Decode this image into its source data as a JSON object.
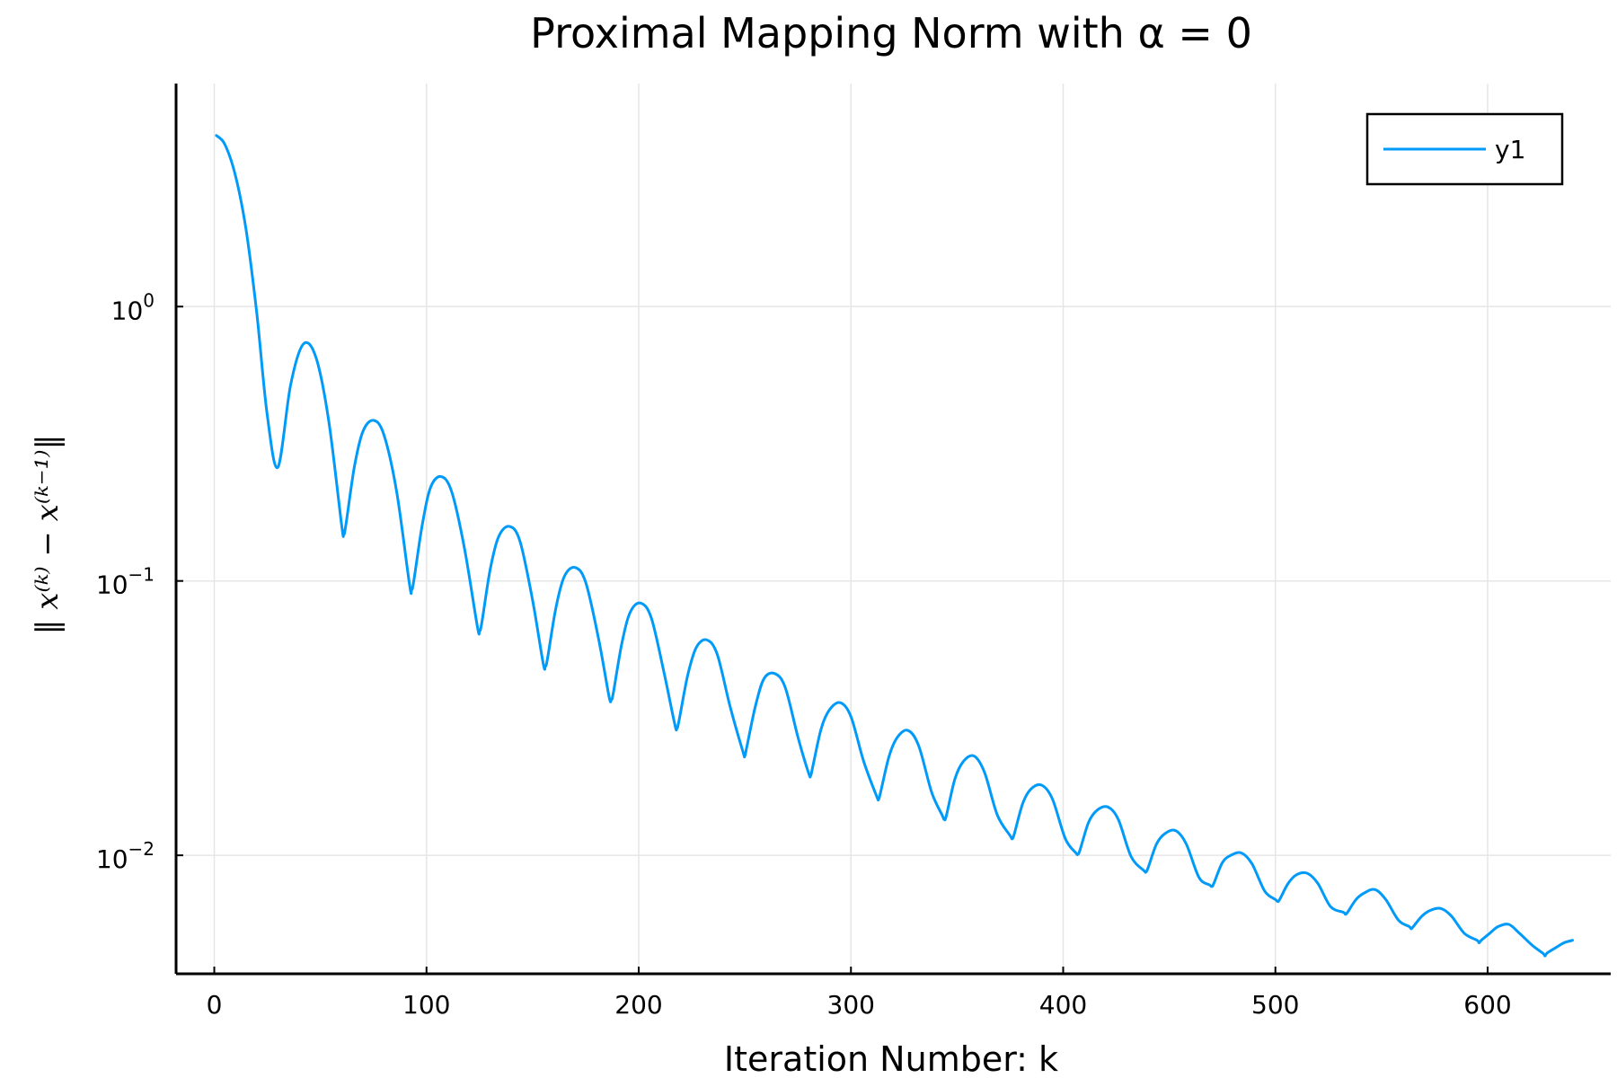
{
  "chart_data": {
    "type": "line",
    "title": "Proximal Mapping Norm with α = 0",
    "xlabel": "Iteration Number: k",
    "ylabel": "‖ x⁽ᵏ⁾ − x⁽ᵏ⁻¹⁾‖",
    "xlim": [
      -18,
      658
    ],
    "ylim": [
      0.0037,
      6.5
    ],
    "yscale": "log",
    "grid": true,
    "legend_position": "top-right",
    "x_ticks": [
      0,
      100,
      200,
      300,
      400,
      500,
      600
    ],
    "x_tick_labels": [
      "0",
      "100",
      "200",
      "300",
      "400",
      "500",
      "600"
    ],
    "y_ticks": [
      {
        "value": 1.0,
        "base": "10",
        "exp": "0"
      },
      {
        "value": 0.1,
        "base": "10",
        "exp": "−1"
      },
      {
        "value": 0.01,
        "base": "10",
        "exp": "−2"
      }
    ],
    "series": [
      {
        "name": "y1",
        "color": "#009af9",
        "x": [
          1,
          5,
          10,
          15,
          20,
          25,
          30,
          36,
          42,
          48,
          54,
          60,
          61,
          62,
          66,
          70,
          75,
          80,
          86,
          92,
          93,
          94,
          98,
          102,
          107,
          112,
          118,
          124,
          125,
          126,
          130,
          134,
          139,
          144,
          150,
          155,
          156,
          157,
          161,
          165,
          170,
          175,
          181,
          186,
          187,
          188,
          192,
          196,
          201,
          206,
          212,
          217,
          218,
          219,
          223,
          227,
          232,
          237,
          243,
          249,
          250,
          251,
          255,
          259,
          264,
          269,
          275,
          280,
          281,
          282,
          286,
          290,
          295,
          300,
          306,
          312,
          313,
          314,
          318,
          322,
          327,
          332,
          338,
          343,
          344,
          345,
          349,
          353,
          358,
          363,
          369,
          375,
          376,
          377,
          381,
          385,
          390,
          395,
          401,
          406,
          407,
          408,
          412,
          416,
          421,
          426,
          432,
          438,
          439,
          440,
          444,
          448,
          453,
          458,
          464,
          469,
          470,
          471,
          475,
          479,
          484,
          489,
          495,
          500,
          501,
          502,
          506,
          510,
          515,
          520,
          526,
          532,
          533,
          534,
          538,
          542,
          547,
          552,
          558,
          563,
          564,
          565,
          569,
          573,
          578,
          583,
          589,
          595,
          596,
          597,
          601,
          605,
          610,
          615,
          621,
          626,
          627,
          628,
          632,
          636,
          640
        ],
        "y": [
          4.2,
          3.9,
          3.0,
          1.9,
          0.95,
          0.4,
          0.26,
          0.52,
          0.73,
          0.65,
          0.38,
          0.16,
          0.148,
          0.16,
          0.26,
          0.35,
          0.385,
          0.34,
          0.21,
          0.097,
          0.093,
          0.1,
          0.16,
          0.22,
          0.24,
          0.21,
          0.13,
          0.068,
          0.066,
          0.07,
          0.11,
          0.145,
          0.158,
          0.14,
          0.085,
          0.05,
          0.049,
          0.052,
          0.08,
          0.104,
          0.112,
          0.099,
          0.062,
          0.038,
          0.037,
          0.039,
          0.059,
          0.077,
          0.083,
          0.073,
          0.046,
          0.03,
          0.029,
          0.031,
          0.045,
          0.057,
          0.061,
          0.054,
          0.035,
          0.024,
          0.023,
          0.025,
          0.035,
          0.044,
          0.046,
          0.041,
          0.027,
          0.02,
          0.0195,
          0.021,
          0.029,
          0.034,
          0.036,
          0.032,
          0.022,
          0.0165,
          0.016,
          0.017,
          0.023,
          0.027,
          0.0285,
          0.025,
          0.017,
          0.014,
          0.0135,
          0.014,
          0.019,
          0.022,
          0.023,
          0.02,
          0.014,
          0.0118,
          0.0115,
          0.012,
          0.0155,
          0.0175,
          0.018,
          0.016,
          0.0115,
          0.0102,
          0.0101,
          0.0105,
          0.0132,
          0.0146,
          0.015,
          0.0135,
          0.0099,
          0.0088,
          0.0087,
          0.009,
          0.011,
          0.012,
          0.0123,
          0.011,
          0.0083,
          0.0078,
          0.0077,
          0.0079,
          0.0094,
          0.01,
          0.0102,
          0.0093,
          0.0074,
          0.0069,
          0.0068,
          0.0069,
          0.0079,
          0.0085,
          0.0086,
          0.0079,
          0.0065,
          0.0062,
          0.0061,
          0.0062,
          0.0069,
          0.0073,
          0.0075,
          0.0069,
          0.0058,
          0.0055,
          0.0054,
          0.0055,
          0.006,
          0.0063,
          0.0064,
          0.006,
          0.0052,
          0.0049,
          0.0048,
          0.0049,
          0.0052,
          0.0055,
          0.0056,
          0.0052,
          0.0047,
          0.0044,
          0.0043,
          0.0044,
          0.0046,
          0.0048,
          0.0049
        ]
      }
    ]
  }
}
